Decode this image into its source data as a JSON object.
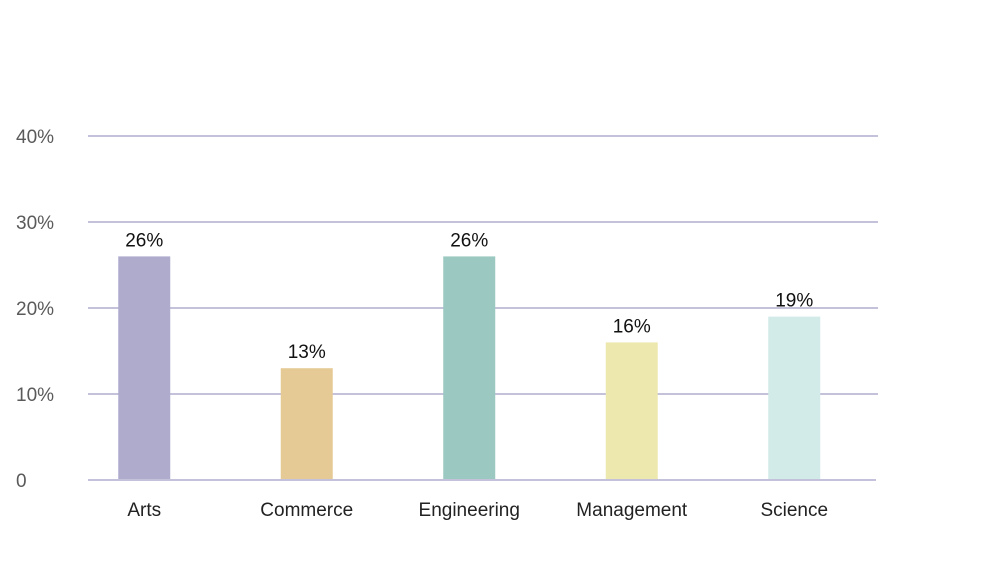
{
  "chart_data": {
    "type": "bar",
    "categories": [
      "Arts",
      "Commerce",
      "Engineering",
      "Management",
      "Science"
    ],
    "values": [
      26,
      13,
      26,
      16,
      19
    ],
    "value_labels": [
      "26%",
      "13%",
      "26%",
      "16%",
      "19%"
    ],
    "colors": [
      "#aeabcd",
      "#e5ca96",
      "#9cc8c2",
      "#ede8ae",
      "#d3ebe8"
    ],
    "ylim": [
      0,
      40
    ],
    "yticks": [
      0,
      10,
      20,
      30,
      40
    ],
    "ytick_labels": [
      "0",
      "10%",
      "20%",
      "30%",
      "40%"
    ],
    "grid": true,
    "title": "",
    "xlabel": "",
    "ylabel": ""
  }
}
